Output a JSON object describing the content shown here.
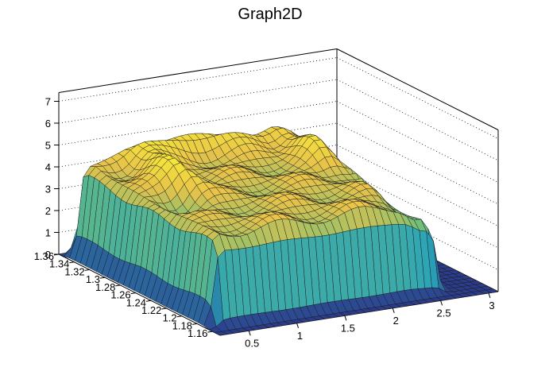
{
  "chart_data": {
    "type": "surface",
    "title": "Graph2D",
    "xlabel": "",
    "ylabel": "",
    "zlabel": "",
    "xlim": [
      0.2,
      3.1
    ],
    "ylim": [
      1.15,
      1.36
    ],
    "zlim": [
      0,
      7.4
    ],
    "x_ticks": [
      "0.5",
      "1",
      "1.5",
      "2",
      "2.5",
      "3"
    ],
    "y_ticks": [
      "1.16",
      "1.18",
      "1.2",
      "1.22",
      "1.24",
      "1.26",
      "1.28",
      "1.3",
      "1.32",
      "1.34",
      "1.36"
    ],
    "z_ticks": [
      "0",
      "1",
      "2",
      "3",
      "4",
      "5",
      "6",
      "7"
    ],
    "grid": true,
    "palette": "viridis-like (blue to yellow)",
    "levels": {
      "plateau": 4.0,
      "left_edge_max": 4.3,
      "central_peak": 5.3,
      "back_ridge": 5.2,
      "right_peak": 5.0,
      "outer_floor": 0.0
    }
  },
  "colors": {
    "low": "#2c3c8c",
    "mid": "#2aa3b8",
    "green": "#6fbf7a",
    "high": "#e8c24a",
    "peak": "#f5e83a",
    "axis": "#000000",
    "grid": "#000000"
  }
}
